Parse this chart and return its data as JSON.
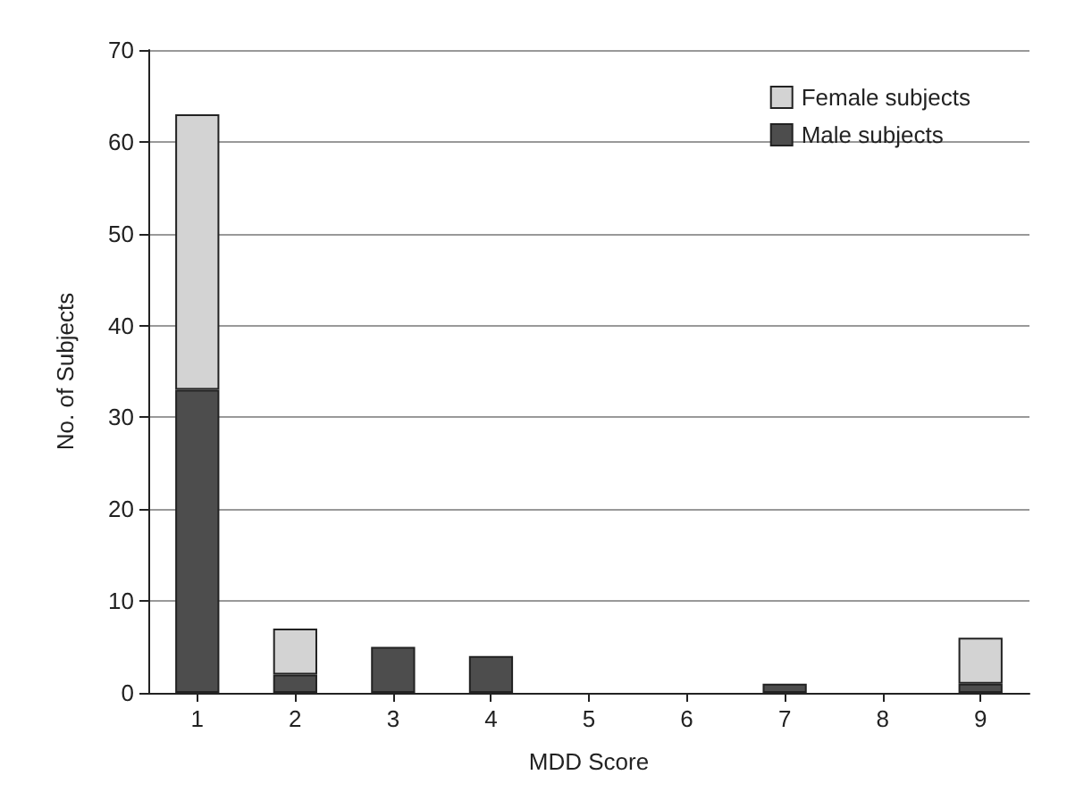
{
  "chart_data": {
    "type": "bar",
    "stacked": true,
    "xlabel": "MDD Score",
    "ylabel": "No. of Subjects",
    "categories": [
      "1",
      "2",
      "3",
      "4",
      "5",
      "6",
      "7",
      "8",
      "9"
    ],
    "series": [
      {
        "name": "Male subjects",
        "color": "#4d4d4d",
        "values": [
          33,
          2,
          5,
          4,
          0,
          0,
          1,
          0,
          1
        ]
      },
      {
        "name": "Female subjects",
        "color": "#d3d3d3",
        "values": [
          30,
          5,
          0,
          0,
          0,
          0,
          0,
          0,
          5
        ]
      }
    ],
    "ylim": [
      0,
      70
    ],
    "yticks": [
      0,
      10,
      20,
      30,
      40,
      50,
      60,
      70
    ],
    "grid": "y",
    "legend": "top right"
  }
}
